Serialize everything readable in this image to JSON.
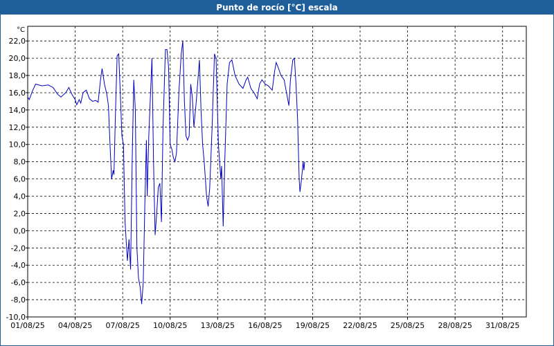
{
  "chart_data": {
    "type": "line",
    "title": "Punto de rocío [°C] escala",
    "ylabel": "°C",
    "series": [
      {
        "name": "Punto de rocío",
        "color": "#0000c0",
        "x": [
          0,
          0.1,
          0.3,
          0.5,
          0.9,
          1.3,
          1.6,
          1.9,
          2.1,
          2.4,
          2.6,
          2.8,
          3.0,
          3.1,
          3.25,
          3.35,
          3.5,
          3.7,
          3.9,
          4.1,
          4.3,
          4.45,
          4.6,
          4.7,
          4.85,
          5.0,
          5.1,
          5.2,
          5.3,
          5.4,
          5.45,
          5.55,
          5.65,
          5.75,
          5.85,
          5.95,
          6.05,
          6.15,
          6.3,
          6.4,
          6.5,
          6.6,
          6.7,
          6.8,
          6.9,
          7.0,
          7.1,
          7.2,
          7.3,
          7.4,
          7.5,
          7.55,
          7.65,
          7.85,
          7.95,
          8.05,
          8.15,
          8.25,
          8.35,
          8.45,
          8.55,
          8.7,
          8.8,
          8.9,
          9.0,
          9.1,
          9.2,
          9.3,
          9.4,
          9.55,
          9.7,
          9.8,
          9.9,
          10.0,
          10.1,
          10.2,
          10.3,
          10.4,
          10.5,
          10.65,
          10.85,
          10.95,
          11.05,
          11.15,
          11.3,
          11.4,
          11.5,
          11.65,
          11.8,
          11.9,
          12.05,
          12.2,
          12.25,
          12.35,
          12.45,
          12.6,
          12.75,
          12.9,
          13.1,
          13.35,
          13.6,
          13.8,
          13.9,
          14.1,
          14.3,
          14.5,
          14.65,
          14.8,
          15.0,
          15.2,
          15.45,
          15.6,
          15.7,
          15.85,
          16.0,
          16.2,
          16.35,
          16.5,
          16.6,
          16.75,
          16.85,
          16.95,
          17.05,
          17.15,
          17.2,
          17.3,
          17.4,
          17.45,
          17.5
        ],
        "values": [
          15.5,
          15.2,
          16.2,
          17.0,
          16.8,
          16.9,
          16.6,
          15.8,
          15.5,
          16.0,
          16.6,
          15.8,
          15.2,
          14.6,
          15.2,
          14.8,
          16.0,
          16.3,
          15.3,
          15.0,
          15.1,
          14.9,
          17.5,
          18.8,
          17.0,
          15.8,
          14.5,
          10.0,
          6.0,
          7.0,
          6.5,
          14.0,
          20.3,
          20.5,
          16.0,
          11.0,
          10.0,
          1.0,
          -3.5,
          -1.0,
          -4.5,
          8.0,
          17.5,
          14.0,
          -2.0,
          -5.5,
          -6.5,
          -8.5,
          -6.0,
          3.0,
          10.5,
          4.0,
          11.0,
          20.0,
          8.0,
          -0.5,
          2.0,
          5.0,
          5.5,
          1.0,
          12.0,
          21.0,
          21.0,
          19.0,
          10.0,
          9.5,
          8.5,
          8.0,
          9.0,
          16.0,
          20.5,
          22.0,
          15.0,
          11.0,
          10.5,
          11.0,
          17.0,
          15.5,
          12.0,
          15.0,
          19.8,
          14.0,
          10.0,
          8.0,
          4.0,
          2.8,
          5.0,
          12.0,
          20.5,
          20.0,
          10.0,
          6.0,
          7.5,
          0.5,
          8.0,
          17.0,
          19.5,
          19.8,
          18.0,
          17.0,
          16.5,
          17.5,
          17.8,
          16.5,
          16.0,
          15.3,
          17.0,
          17.5,
          17.0,
          16.8,
          16.3,
          18.5,
          19.5,
          18.8,
          18.0,
          17.5,
          16.0,
          14.5,
          17.5,
          19.8,
          20.0,
          17.0,
          13.0,
          6.0,
          4.5,
          6.0,
          8.0,
          7.0,
          8.0
        ]
      }
    ],
    "xlim": [
      0,
      31.5
    ],
    "xticks": [
      {
        "value": 0,
        "label": "01/08/25"
      },
      {
        "value": 3,
        "label": "04/08/25"
      },
      {
        "value": 6,
        "label": "07/08/25"
      },
      {
        "value": 9,
        "label": "10/08/25"
      },
      {
        "value": 12,
        "label": "13/08/25"
      },
      {
        "value": 15,
        "label": "16/08/25"
      },
      {
        "value": 18,
        "label": "19/08/25"
      },
      {
        "value": 21,
        "label": "22/08/25"
      },
      {
        "value": 24,
        "label": "25/08/25"
      },
      {
        "value": 27,
        "label": "28/08/25"
      },
      {
        "value": 30,
        "label": "31/08/25"
      }
    ],
    "ylim": [
      -10,
      23.7
    ],
    "yticks": [
      {
        "value": -10,
        "label": "-10,0"
      },
      {
        "value": -8,
        "label": "-8,0"
      },
      {
        "value": -6,
        "label": "-6,0"
      },
      {
        "value": -4,
        "label": "-4,0"
      },
      {
        "value": -2,
        "label": "-2,0"
      },
      {
        "value": 0,
        "label": "0,0"
      },
      {
        "value": 2,
        "label": "2,0"
      },
      {
        "value": 4,
        "label": "4,0"
      },
      {
        "value": 6,
        "label": "6,0"
      },
      {
        "value": 8,
        "label": "8,0"
      },
      {
        "value": 10,
        "label": "10,0"
      },
      {
        "value": 12,
        "label": "12,0"
      },
      {
        "value": 14,
        "label": "14,0"
      },
      {
        "value": 16,
        "label": "16,0"
      },
      {
        "value": 18,
        "label": "18,0"
      },
      {
        "value": 20,
        "label": "20,0"
      },
      {
        "value": 22,
        "label": "22,0"
      }
    ],
    "grid": true
  }
}
